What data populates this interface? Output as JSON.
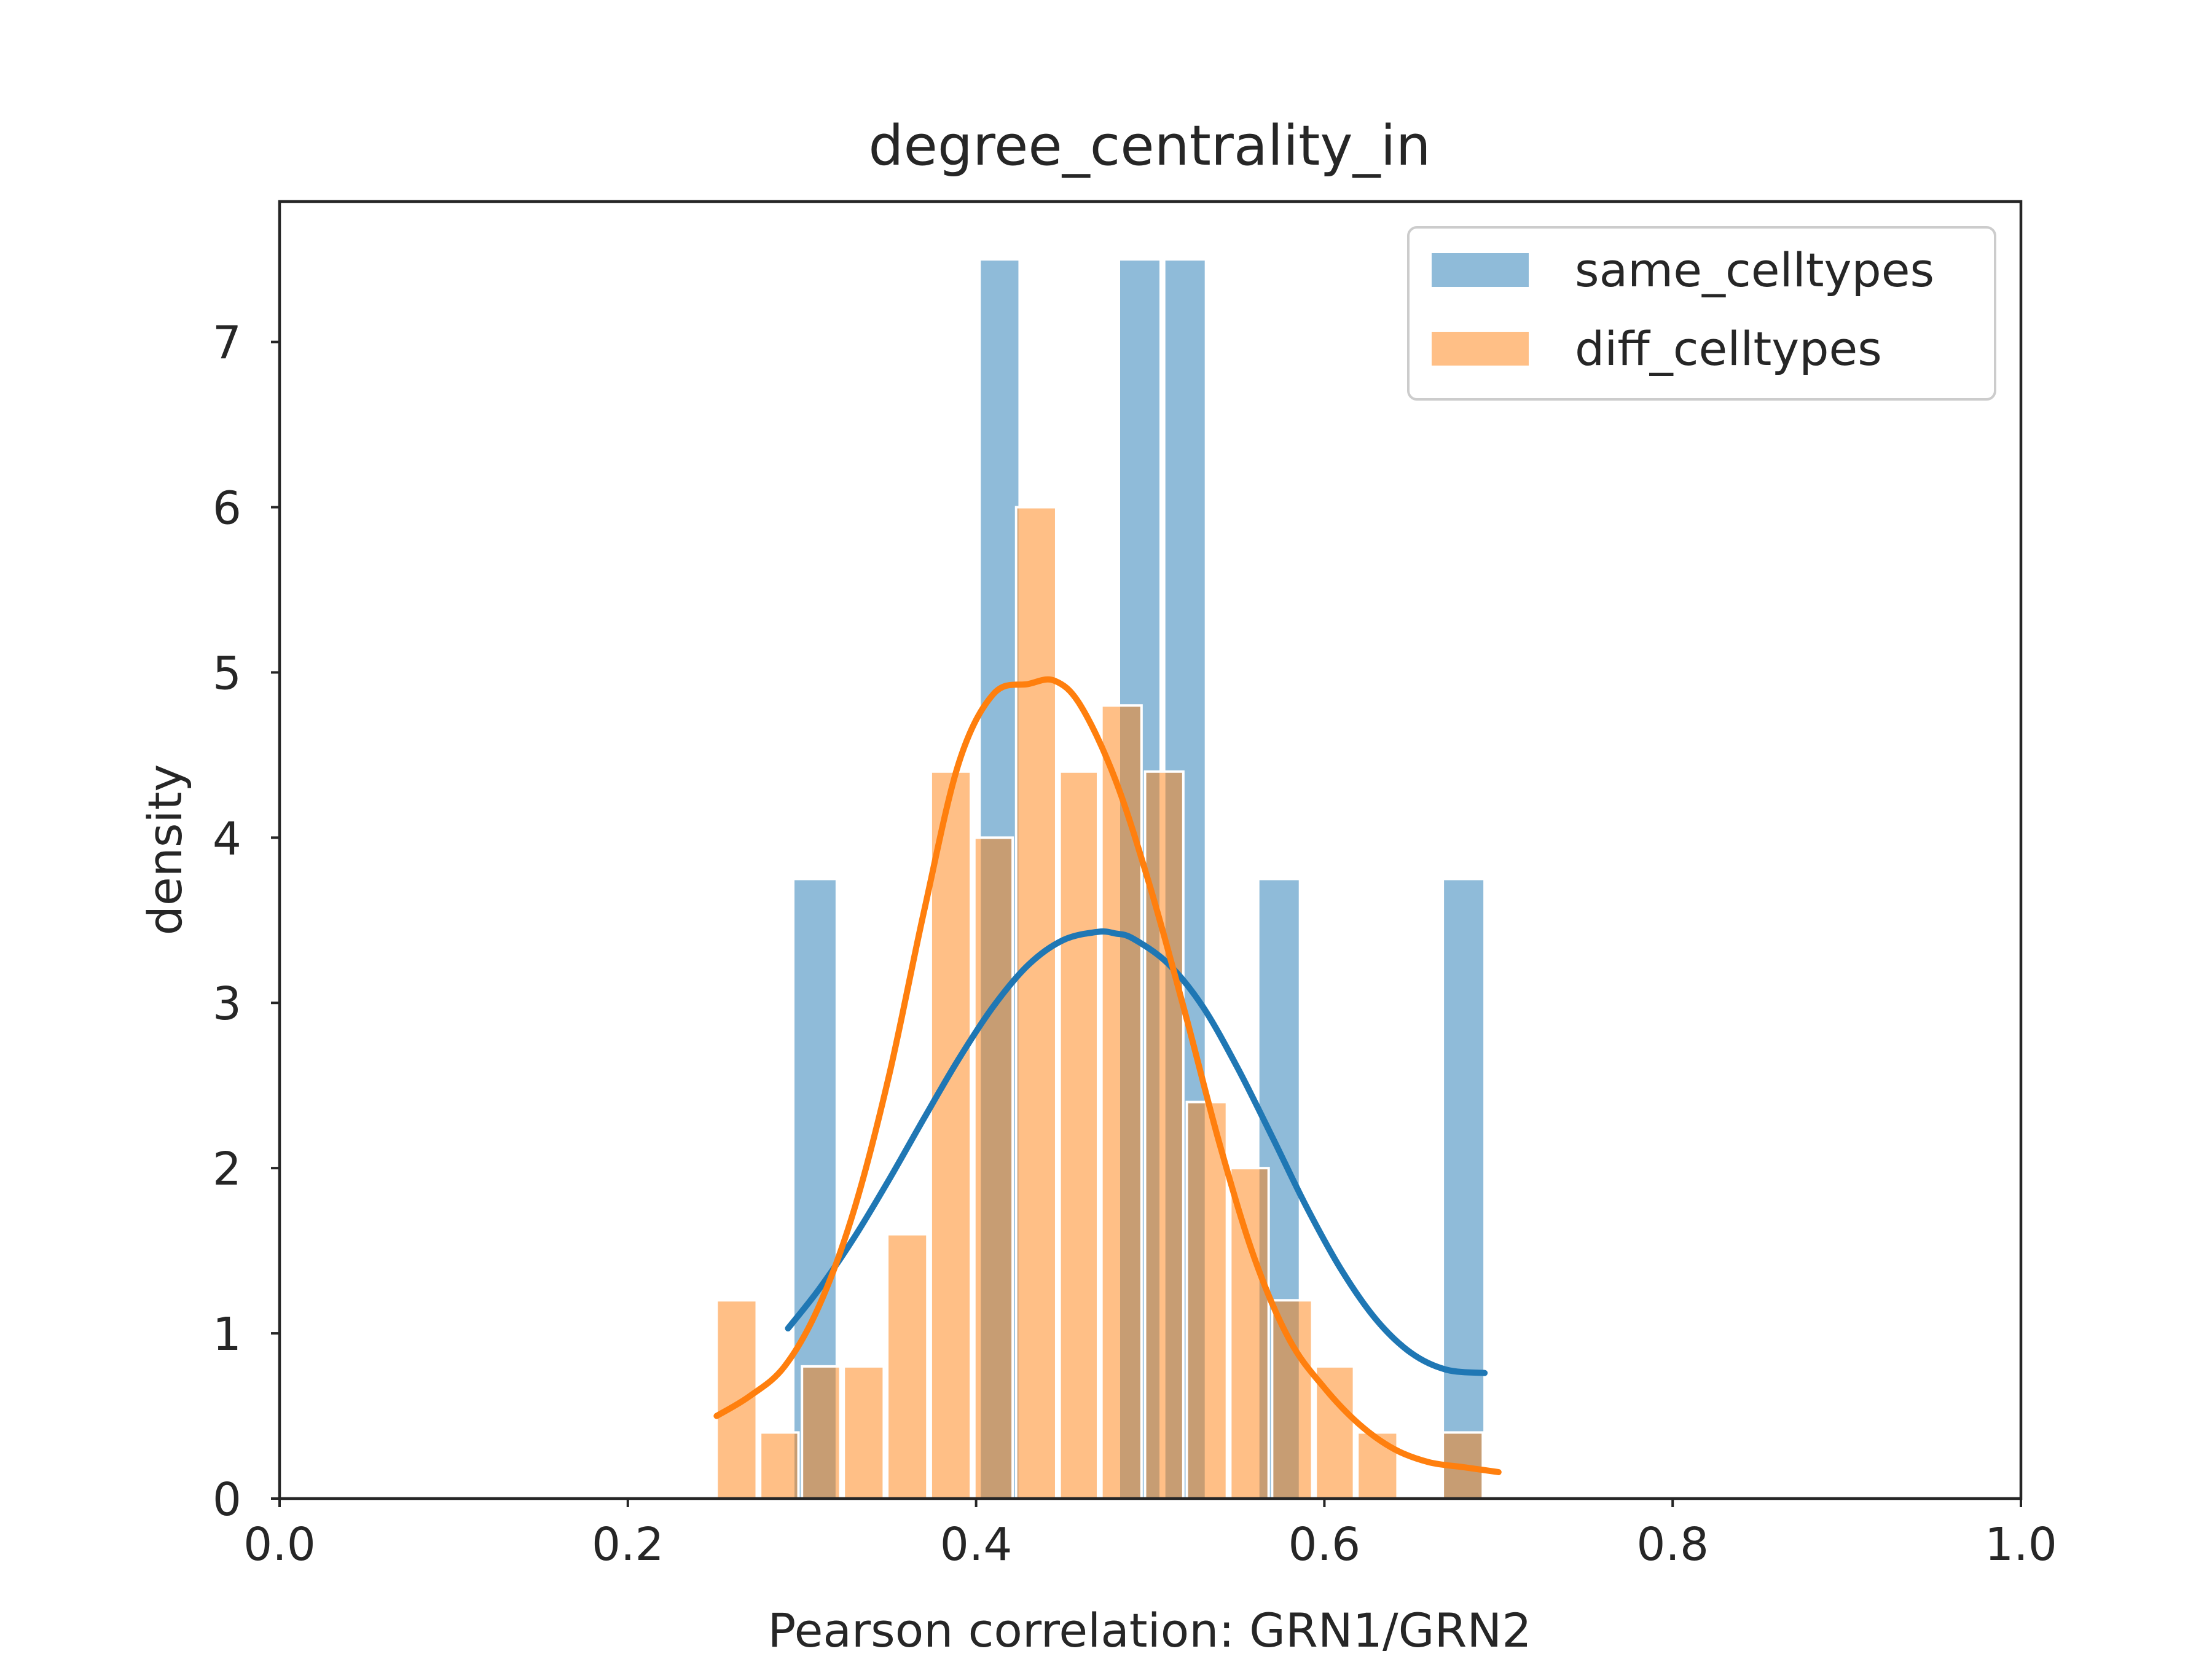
{
  "chart_data": {
    "type": "histogram",
    "title": "degree_centrality_in",
    "xlabel": "Pearson correlation: GRN1/GRN2",
    "ylabel": "density",
    "xlim": [
      0.0,
      1.0
    ],
    "ylim": [
      0,
      7.85
    ],
    "xticks": [
      "0.0",
      "0.2",
      "0.4",
      "0.6",
      "0.8",
      "1.0"
    ],
    "xtick_values": [
      0.0,
      0.2,
      0.4,
      0.6,
      0.8,
      1.0
    ],
    "yticks": [
      "0",
      "1",
      "2",
      "3",
      "4",
      "5",
      "6",
      "7"
    ],
    "ytick_values": [
      0,
      1,
      2,
      3,
      4,
      5,
      6,
      7
    ],
    "grid": false,
    "legend_position": "top-right",
    "series": [
      {
        "name": "same_celltypes",
        "color": "#1f77b4",
        "bar_alpha": 0.5,
        "bars": [
          {
            "x0": 0.295,
            "x1": 0.32,
            "y": 3.75
          },
          {
            "x0": 0.402,
            "x1": 0.425,
            "y": 7.5
          },
          {
            "x0": 0.482,
            "x1": 0.506,
            "y": 7.5
          },
          {
            "x0": 0.508,
            "x1": 0.532,
            "y": 7.5
          },
          {
            "x0": 0.562,
            "x1": 0.586,
            "y": 3.75
          },
          {
            "x0": 0.668,
            "x1": 0.692,
            "y": 3.75
          }
        ],
        "kde": {
          "x": [
            0.292,
            0.31,
            0.33,
            0.35,
            0.37,
            0.39,
            0.41,
            0.43,
            0.45,
            0.47,
            0.48,
            0.49,
            0.51,
            0.53,
            0.55,
            0.57,
            0.59,
            0.61,
            0.63,
            0.65,
            0.67,
            0.692
          ],
          "y": [
            1.03,
            1.27,
            1.58,
            1.93,
            2.3,
            2.66,
            2.98,
            3.23,
            3.38,
            3.43,
            3.42,
            3.39,
            3.24,
            2.98,
            2.61,
            2.19,
            1.76,
            1.38,
            1.08,
            0.88,
            0.78,
            0.76
          ]
        }
      },
      {
        "name": "diff_celltypes",
        "color": "#ff7f0e",
        "bar_alpha": 0.5,
        "bars": [
          {
            "x0": 0.251,
            "x1": 0.274,
            "y": 1.2
          },
          {
            "x0": 0.276,
            "x1": 0.298,
            "y": 0.4
          },
          {
            "x0": 0.3,
            "x1": 0.322,
            "y": 0.8
          },
          {
            "x0": 0.324,
            "x1": 0.347,
            "y": 0.8
          },
          {
            "x0": 0.349,
            "x1": 0.372,
            "y": 1.6
          },
          {
            "x0": 0.374,
            "x1": 0.397,
            "y": 4.4
          },
          {
            "x0": 0.399,
            "x1": 0.421,
            "y": 4.0
          },
          {
            "x0": 0.423,
            "x1": 0.446,
            "y": 6.0
          },
          {
            "x0": 0.448,
            "x1": 0.47,
            "y": 4.4
          },
          {
            "x0": 0.472,
            "x1": 0.495,
            "y": 4.8
          },
          {
            "x0": 0.497,
            "x1": 0.519,
            "y": 4.4
          },
          {
            "x0": 0.521,
            "x1": 0.544,
            "y": 2.4
          },
          {
            "x0": 0.546,
            "x1": 0.568,
            "y": 2.0
          },
          {
            "x0": 0.57,
            "x1": 0.593,
            "y": 1.2
          },
          {
            "x0": 0.595,
            "x1": 0.617,
            "y": 0.8
          },
          {
            "x0": 0.619,
            "x1": 0.642,
            "y": 0.4
          },
          {
            "x0": 0.668,
            "x1": 0.691,
            "y": 0.4
          }
        ],
        "kde": {
          "x": [
            0.251,
            0.27,
            0.29,
            0.31,
            0.33,
            0.35,
            0.37,
            0.39,
            0.41,
            0.43,
            0.445,
            0.46,
            0.48,
            0.5,
            0.52,
            0.54,
            0.56,
            0.58,
            0.6,
            0.62,
            0.64,
            0.66,
            0.68,
            0.7
          ],
          "y": [
            0.5,
            0.62,
            0.8,
            1.17,
            1.75,
            2.56,
            3.55,
            4.45,
            4.87,
            4.93,
            4.95,
            4.8,
            4.35,
            3.7,
            2.94,
            2.14,
            1.45,
            0.96,
            0.67,
            0.45,
            0.3,
            0.22,
            0.19,
            0.16
          ]
        }
      }
    ]
  }
}
